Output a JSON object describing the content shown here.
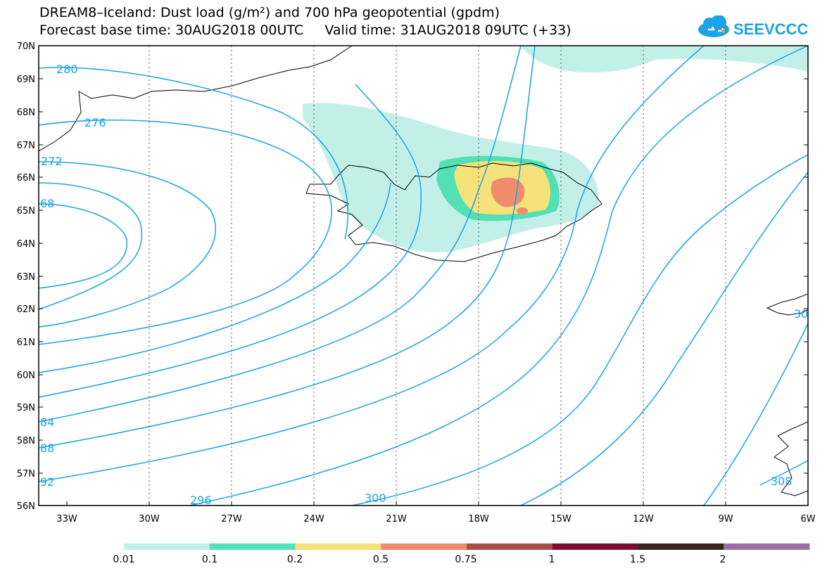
{
  "title_line1": "DREAM8–Iceland: Dust load (g/m²) and 700 hPa geopotential (gpdm)",
  "title_line2": "Forecast base time: 30AUG2018 00UTC     Valid time: 31AUG2018 09UTC (+33)",
  "logo_text": "SEEVCCC",
  "colors": {
    "contour": "#1aa3e8",
    "coast": "#000000",
    "grid": "#555555"
  },
  "map": {
    "lat_labels": [
      "70N",
      "69N",
      "68N",
      "67N",
      "66N",
      "65N",
      "64N",
      "63N",
      "62N",
      "61N",
      "60N",
      "59N",
      "58N",
      "57N",
      "56N"
    ],
    "lon_labels": [
      "33W",
      "30W",
      "27W",
      "24W",
      "21W",
      "18W",
      "15W",
      "12W",
      "9W",
      "6W"
    ],
    "contour_labels": [
      "280",
      "276",
      "272",
      "68",
      "84",
      "88",
      "92",
      "296",
      "300",
      "308",
      "30"
    ]
  },
  "colorbar": {
    "labels": [
      "0.01",
      "0.1",
      "0.2",
      "0.5",
      "0.75",
      "1",
      "1.5",
      "2"
    ],
    "colors": [
      "#c2f0e8",
      "#52e0b4",
      "#f5e27a",
      "#ee8c6c",
      "#a84d44",
      "#7d0c34",
      "#3a241e",
      "#9b6fa5"
    ]
  }
}
